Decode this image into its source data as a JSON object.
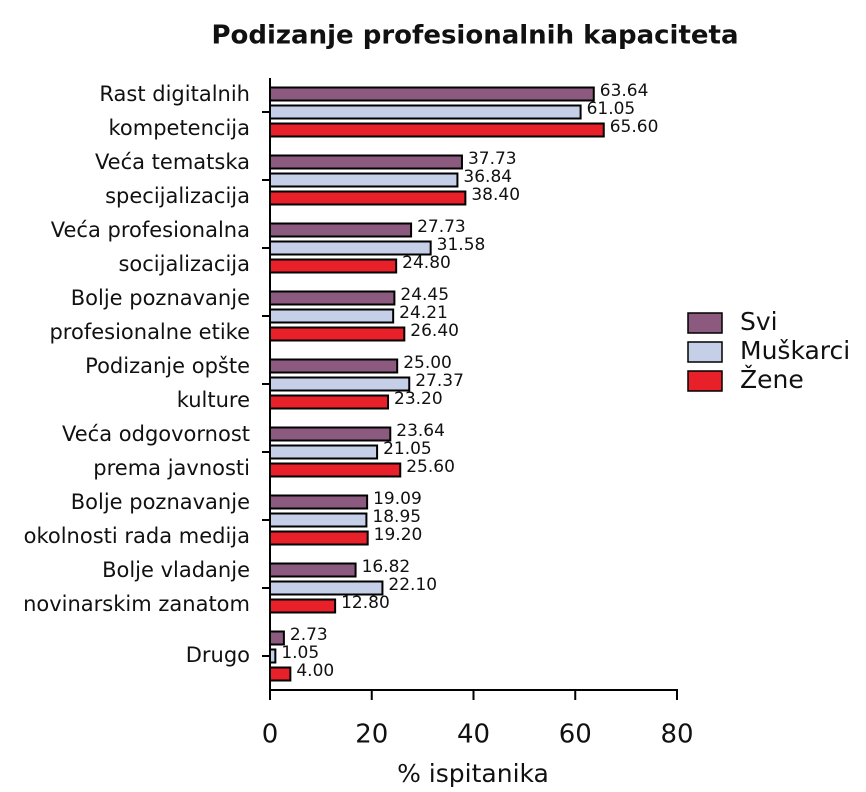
{
  "chart_data": {
    "type": "hbar",
    "title": "Podizanje profesionalnih kapaciteta",
    "xlabel": "% ispitanika",
    "categories": [
      [
        "Rast digitalnih",
        "kompetencija"
      ],
      [
        "Veća tematska",
        "specijalizacija"
      ],
      [
        "Veća profesionalna",
        "socijalizacija"
      ],
      [
        "Bolje poznavanje",
        "profesionalne etike"
      ],
      [
        "Podizanje opšte",
        "kulture"
      ],
      [
        "Veća odgovornost",
        "prema javnosti"
      ],
      [
        "Bolje poznavanje",
        "okolnosti rada medija"
      ],
      [
        "Bolje vladanje",
        "novinarskim zanatom"
      ],
      [
        "Drugo"
      ]
    ],
    "series": [
      {
        "name": "Svi",
        "color": "#8b5a7e",
        "values": [
          63.64,
          37.73,
          27.73,
          24.45,
          25.0,
          23.64,
          19.09,
          16.82,
          2.73
        ],
        "value_labels": [
          "63.64",
          "37.73",
          "27.73",
          "24.45",
          "25.00",
          "23.64",
          "19.09",
          "16.82",
          "2.73"
        ]
      },
      {
        "name": "Muškarci",
        "color": "#c5cfe8",
        "values": [
          61.05,
          36.84,
          31.58,
          24.21,
          27.37,
          21.05,
          18.95,
          22.1,
          1.05
        ],
        "value_labels": [
          "61.05",
          "36.84",
          "31.58",
          "24.21",
          "27.37",
          "21.05",
          "18.95",
          "22.10",
          "1.05"
        ]
      },
      {
        "name": "Žene",
        "color": "#e8202a",
        "values": [
          65.6,
          38.4,
          24.8,
          26.4,
          23.2,
          25.6,
          19.2,
          12.8,
          4.0
        ],
        "value_labels": [
          "65.60",
          "38.40",
          "24.80",
          "26.40",
          "23.20",
          "25.60",
          "19.20",
          "12.80",
          "4.00"
        ]
      }
    ],
    "xlim": [
      0,
      80
    ],
    "xticks": [
      0,
      20,
      40,
      60,
      80
    ],
    "legend": "right"
  }
}
